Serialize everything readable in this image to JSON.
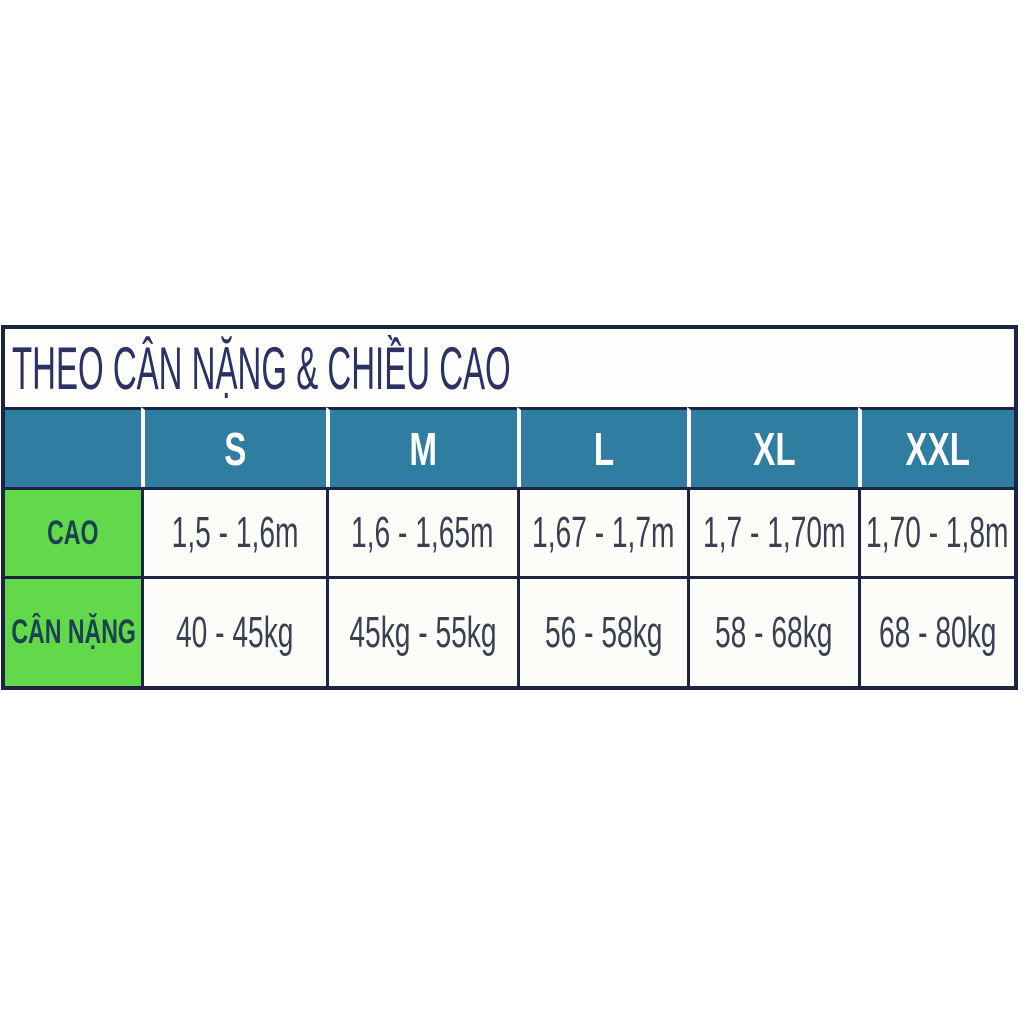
{
  "title": "THEO CÂN NẶNG & CHIỀU CAO",
  "table": {
    "corner_label": "",
    "columns": [
      "S",
      "M",
      "L",
      "XL",
      "XXL"
    ],
    "rows": [
      {
        "label": "CAO",
        "values": [
          "1,5 - 1,6m",
          "1,6 - 1,65m",
          "1,67 - 1,7m",
          "1,7 - 1,70m",
          "1,70 - 1,8m"
        ]
      },
      {
        "label": "CÂN NẶNG",
        "values": [
          "40 - 45kg",
          "45kg - 55kg",
          "56 - 58kg",
          "58 - 68kg",
          "68 - 80kg"
        ]
      }
    ]
  },
  "colors": {
    "border": "#1d2342",
    "teal": "#2f7da0",
    "green": "#62d94a",
    "title": "#2b3163",
    "label": "#1c4153",
    "value": "#3a4050",
    "cellbg": "#fcfcf9",
    "headertext": "#ffffff"
  }
}
